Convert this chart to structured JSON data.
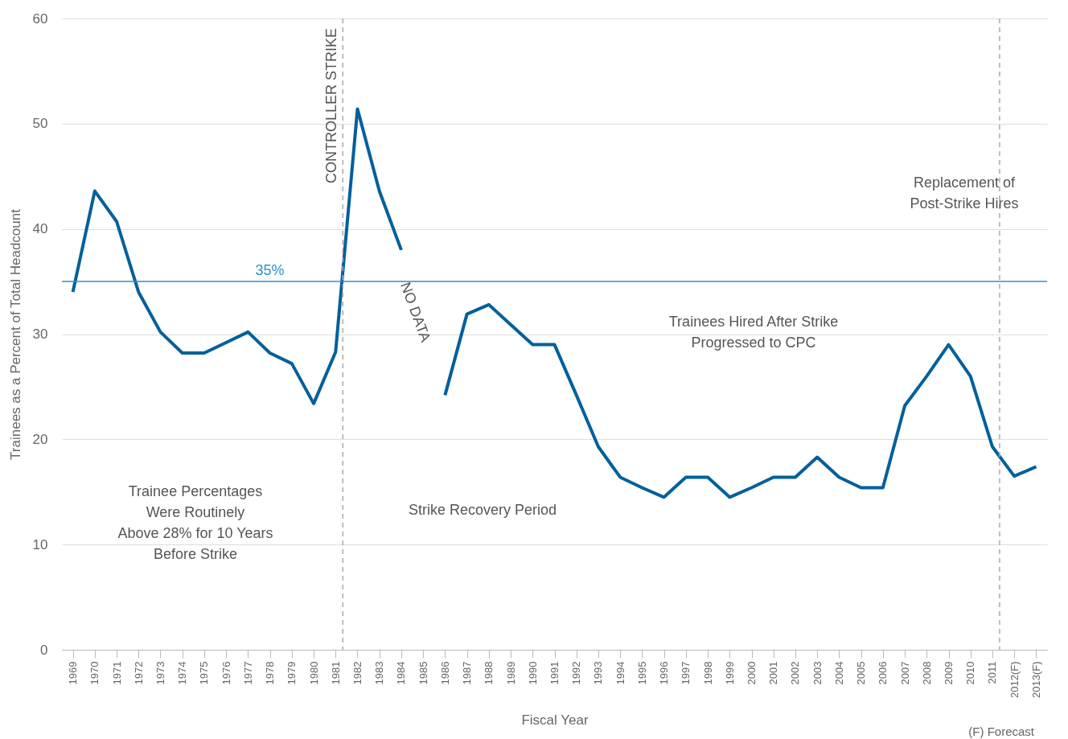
{
  "chart_data": {
    "type": "line",
    "xlabel": "Fiscal Year",
    "ylabel": "Trainees as a Percent of Total Headcount",
    "categories": [
      "1969",
      "1970",
      "1971",
      "1972",
      "1973",
      "1974",
      "1975",
      "1976",
      "1977",
      "1978",
      "1979",
      "1980",
      "1981",
      "1982",
      "1983",
      "1984",
      "1985",
      "1986",
      "1987",
      "1988",
      "1989",
      "1990",
      "1991",
      "1992",
      "1993",
      "1994",
      "1995",
      "1996",
      "1997",
      "1998",
      "1999",
      "2000",
      "2001",
      "2002",
      "2003",
      "2004",
      "2005",
      "2006",
      "2007",
      "2008",
      "2009",
      "2010",
      "2011",
      "2012(F)",
      "2013(F)"
    ],
    "color": "#00609c",
    "values": [
      34,
      43.6,
      40.7,
      34,
      30.2,
      28.2,
      28.2,
      29.2,
      30.2,
      28.2,
      27.2,
      23.4,
      28.3,
      51.4,
      43.6,
      38,
      null,
      24.2,
      31.9,
      32.8,
      30.9,
      29,
      29,
      24.2,
      19.3,
      16.4,
      15.4,
      14.5,
      16.4,
      16.4,
      14.5,
      15.4,
      16.4,
      16.4,
      18.3,
      16.4,
      15.4,
      15.4,
      23.2,
      26,
      29,
      26,
      19.3,
      16.5,
      17.4
    ],
    "ylim": [
      0,
      60
    ],
    "yticks": [
      0,
      10,
      20,
      30,
      40,
      50,
      60
    ],
    "grid": "y",
    "marker": "none",
    "line_style": "solid",
    "ref_lines": [
      {
        "axis": "y",
        "value": 35,
        "label": "35%",
        "color": "#2b8fd0",
        "line_style": "solid"
      },
      {
        "axis": "x",
        "value": "1981",
        "label": "CONTROLLER STRIKE",
        "color": "#aaaaaa",
        "line_style": "dashed"
      },
      {
        "axis": "x",
        "value": "2011",
        "label": null,
        "color": "#aaaaaa",
        "line_style": "dashed"
      }
    ],
    "annotations": [
      "NO DATA",
      "Trainee Percentages\nWere Routinely\nAbove 28% for 10 Years\nBefore Strike",
      "Strike Recovery Period",
      "Trainees Hired After Strike\nProgressed to CPC",
      "Replacement of\nPost-Strike Hires",
      "(F) Forecast"
    ]
  }
}
